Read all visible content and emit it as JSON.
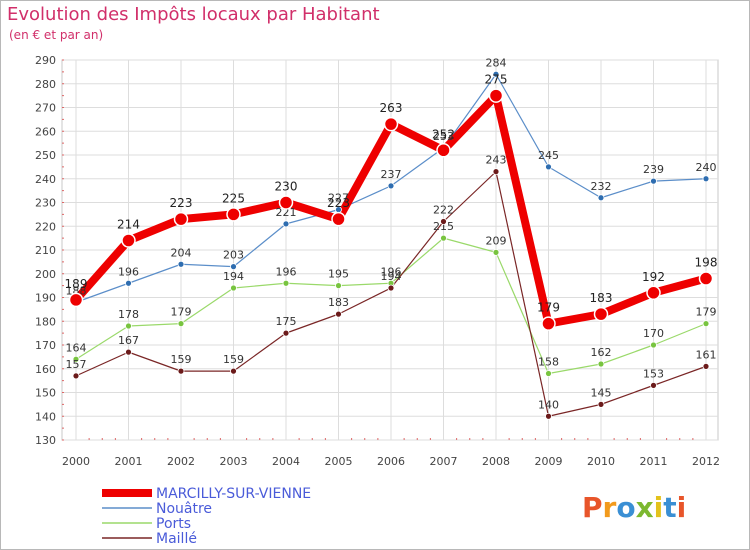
{
  "header": {
    "title": "Evolution des Impôts locaux par Habitant",
    "subtitle": "(en € et par an)"
  },
  "logo": {
    "text": "Proxiti",
    "colors": [
      "#e8552a",
      "#f29a1c",
      "#3a8fd4",
      "#7cb82f",
      "#e3c21c",
      "#3a8fd4",
      "#e8552a"
    ]
  },
  "chart_data": {
    "type": "line",
    "title": "Evolution des Impôts locaux par Habitant",
    "subtitle": "(en € et par an)",
    "xlabel": "",
    "ylabel": "",
    "x": [
      "2000",
      "2001",
      "2002",
      "2003",
      "2004",
      "2005",
      "2006",
      "2007",
      "2008",
      "2009",
      "2010",
      "2011",
      "2012"
    ],
    "ylim": [
      130,
      290
    ],
    "yticks": [
      130,
      140,
      150,
      160,
      170,
      180,
      190,
      200,
      210,
      220,
      230,
      240,
      250,
      260,
      270,
      280,
      290
    ],
    "grid": true,
    "legend_position": "bottom-left",
    "series": [
      {
        "name": "Nouâtre",
        "color": "#5b8ec9",
        "dot": "#2e6db0",
        "width": 1.2,
        "values": [
          188,
          196,
          204,
          203,
          221,
          227,
          237,
          253,
          284,
          245,
          232,
          239,
          240
        ]
      },
      {
        "name": "Ports",
        "color": "#9ad96a",
        "dot": "#78c43f",
        "width": 1.2,
        "values": [
          164,
          178,
          179,
          194,
          196,
          195,
          196,
          215,
          209,
          158,
          162,
          170,
          179
        ]
      },
      {
        "name": "Maillé",
        "color": "#7a2626",
        "dot": "#6b1a1a",
        "width": 1.2,
        "values": [
          157,
          167,
          159,
          159,
          175,
          183,
          194,
          222,
          243,
          140,
          145,
          153,
          161
        ]
      },
      {
        "name": "MARCILLY-SUR-VIENNE",
        "color": "#ee0000",
        "dot": "#ee0000",
        "width": 8,
        "values": [
          189,
          214,
          223,
          225,
          230,
          223,
          263,
          252,
          275,
          179,
          183,
          192,
          198
        ]
      }
    ],
    "legend_order": [
      "MARCILLY-SUR-VIENNE",
      "Nouâtre",
      "Ports",
      "Maillé"
    ],
    "legend_text_color": "#4a5bd9"
  }
}
